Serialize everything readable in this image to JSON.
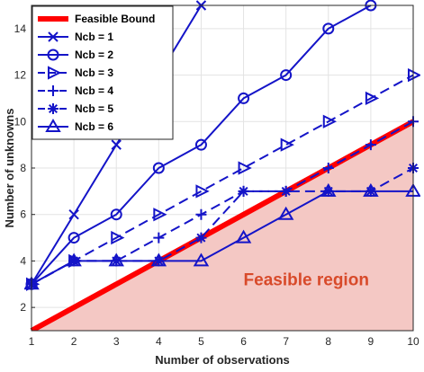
{
  "chart_data": {
    "type": "line",
    "xlabel": "Number of observations",
    "ylabel": "Number of unknowns",
    "xlim": [
      1,
      10
    ],
    "ylim": [
      1,
      15
    ],
    "xticks": [
      1,
      2,
      3,
      4,
      5,
      6,
      7,
      8,
      9,
      10
    ],
    "yticks": [
      2,
      4,
      6,
      8,
      10,
      12,
      14
    ],
    "grid": true,
    "legend_position": "top-left",
    "annotation": "Feasible region",
    "annotation_color": "#d84a2a",
    "feasible_region_color": "#f4c8c4",
    "series": [
      {
        "name": "Feasible Bound",
        "color": "#ff0000",
        "style": "solid-thick",
        "marker": "none",
        "x": [
          1,
          10
        ],
        "y": [
          1,
          10
        ]
      },
      {
        "name": "Ncb = 1",
        "color": "#1414c8",
        "style": "solid",
        "marker": "x",
        "x": [
          1,
          2,
          3,
          4,
          5
        ],
        "y": [
          3,
          6,
          9,
          12,
          15
        ]
      },
      {
        "name": "Ncb = 2",
        "color": "#1414c8",
        "style": "solid",
        "marker": "circle",
        "x": [
          1,
          2,
          3,
          4,
          5,
          6,
          7,
          8,
          9
        ],
        "y": [
          3,
          5,
          6,
          8,
          9,
          11,
          12,
          14,
          15
        ]
      },
      {
        "name": "Ncb = 3",
        "color": "#1414c8",
        "style": "dashed",
        "marker": "triangle-right",
        "x": [
          1,
          2,
          3,
          4,
          5,
          6,
          7,
          8,
          9,
          10
        ],
        "y": [
          3,
          4,
          5,
          6,
          7,
          8,
          9,
          10,
          11,
          12
        ]
      },
      {
        "name": "Ncb = 4",
        "color": "#1414c8",
        "style": "dashed",
        "marker": "plus",
        "x": [
          1,
          2,
          3,
          4,
          5,
          6,
          7,
          8,
          9,
          10
        ],
        "y": [
          3,
          4,
          4,
          5,
          6,
          7,
          7,
          8,
          9,
          10
        ]
      },
      {
        "name": "Ncb = 5",
        "color": "#1414c8",
        "style": "dashed",
        "marker": "asterisk",
        "x": [
          1,
          2,
          3,
          4,
          5,
          6,
          7,
          8,
          9,
          10
        ],
        "y": [
          3,
          4,
          4,
          4,
          5,
          7,
          7,
          7,
          7,
          8
        ]
      },
      {
        "name": "Ncb = 6",
        "color": "#1414c8",
        "style": "solid",
        "marker": "triangle-up",
        "x": [
          1,
          2,
          3,
          4,
          5,
          6,
          7,
          8,
          9,
          10
        ],
        "y": [
          3,
          4,
          4,
          4,
          4,
          5,
          6,
          7,
          7,
          7
        ]
      }
    ]
  }
}
